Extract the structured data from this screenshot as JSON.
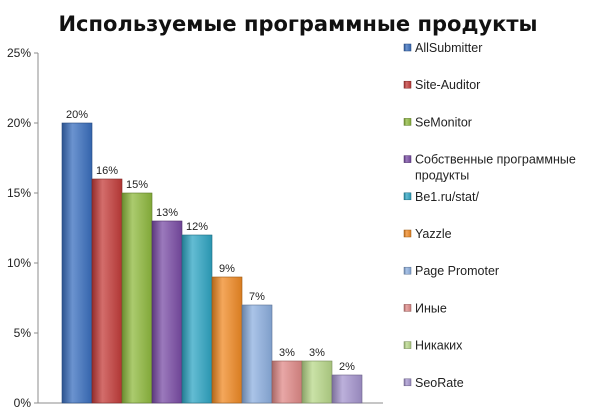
{
  "chart_data": {
    "type": "bar",
    "title": "Используемые программные продукты",
    "xlabel": "",
    "ylabel": "",
    "ylim": [
      0,
      25
    ],
    "yticks": [
      0,
      5,
      10,
      15,
      20,
      25
    ],
    "ytick_labels": [
      "0%",
      "5%",
      "10%",
      "15%",
      "20%",
      "25%"
    ],
    "grid": false,
    "legend_position": "right",
    "categories": [
      "AllSubmitter",
      "Site-Auditor",
      "SeMonitor",
      "Собственные программные продукты",
      "Be1.ru/stat/",
      "Yazzle",
      "Page Promoter",
      "Иные",
      "Никаких",
      "SeoRate"
    ],
    "values": [
      20,
      16,
      15,
      13,
      12,
      9,
      7,
      3,
      3,
      2
    ],
    "value_labels": [
      "20%",
      "16%",
      "15%",
      "13%",
      "12%",
      "9%",
      "7%",
      "3%",
      "3%",
      "2%"
    ],
    "legend": [
      [
        "AllSubmitter"
      ],
      [
        "Site-Auditor"
      ],
      [
        "SeMonitor"
      ],
      [
        "Собственные программные",
        "продукты"
      ],
      [
        "Be1.ru/stat/"
      ],
      [
        "Yazzle"
      ],
      [
        "Page Promoter"
      ],
      [
        "Иные"
      ],
      [
        "Никаких"
      ],
      [
        "SeoRate"
      ]
    ],
    "colors": [
      "#3a6fbf",
      "#c43c3a",
      "#8fba3e",
      "#7a4ca6",
      "#2fa6c4",
      "#f08a24",
      "#8db0e0",
      "#e08a88",
      "#b8d88a",
      "#a595cf"
    ]
  }
}
